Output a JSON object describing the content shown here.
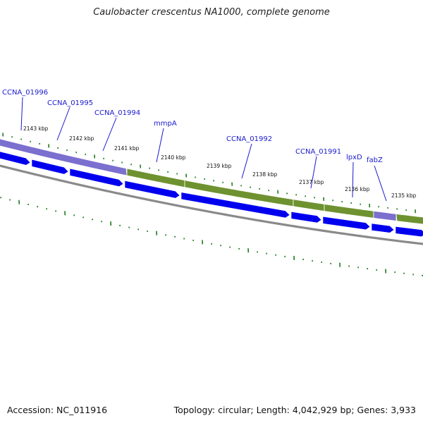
{
  "title": "Caulobacter crescentus NA1000, complete genome",
  "footer": {
    "accession": "Accession: NC_011916",
    "stats": "Topology: circular; Length: 4,042,929 bp; Genes: 3,933"
  },
  "colors": {
    "gene_label": "#1a1acc",
    "cds_arrow": "#0000ee",
    "band_purple": "#7b6fcf",
    "band_green": "#6f9230",
    "backbone": "#8a8a8a",
    "tick_green": "#1f7a1f"
  },
  "kbp_labels": [
    "2143 kbp",
    "2142 kbp",
    "2141 kbp",
    "2140 kbp",
    "2139 kbp",
    "2138 kbp",
    "2137 kbp",
    "2136 kbp",
    "2135 kbp"
  ],
  "gene_labels": [
    "CCNA_01996",
    "CCNA_01995",
    "CCNA_01994",
    "mmpA",
    "CCNA_01992",
    "CCNA_01991",
    "lpxD",
    "fabZ"
  ]
}
